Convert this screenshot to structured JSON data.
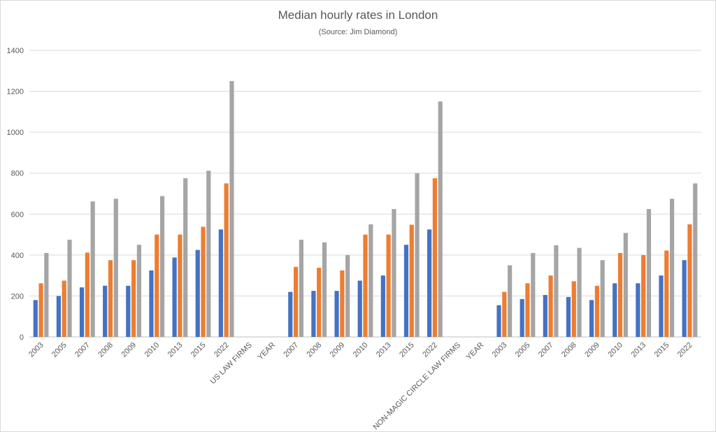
{
  "chart_data": {
    "type": "bar",
    "title": "Median hourly rates in London",
    "subtitle": "(Source: Jim Diamond)",
    "xlabel": "",
    "ylabel": "",
    "ylim": [
      0,
      1400
    ],
    "yticks": [
      0,
      200,
      400,
      600,
      800,
      1000,
      1200,
      1400
    ],
    "grid": true,
    "categories": [
      "2003",
      "2005",
      "2007",
      "2008",
      "2009",
      "2010",
      "2013",
      "2015",
      "2022",
      "US LAW FIRMS",
      "YEAR",
      "2007",
      "2008",
      "2009",
      "2010",
      "2013",
      "2015",
      "2022",
      "NON-MAGIC CIRCLE LAW FIRMS",
      "YEAR",
      "2003",
      "2005",
      "2007",
      "2008",
      "2009",
      "2010",
      "2013",
      "2015",
      "2022"
    ],
    "series": [
      {
        "color": "#4472c4",
        "values": [
          180,
          200,
          242,
          250,
          250,
          325,
          388,
          425,
          525,
          null,
          null,
          220,
          225,
          225,
          275,
          300,
          450,
          525,
          null,
          null,
          155,
          185,
          205,
          195,
          180,
          262,
          262,
          300,
          375
        ]
      },
      {
        "color": "#ed7d31",
        "values": [
          262,
          275,
          412,
          375,
          375,
          500,
          500,
          538,
          750,
          null,
          null,
          342,
          338,
          325,
          500,
          500,
          548,
          775,
          null,
          null,
          220,
          262,
          300,
          272,
          250,
          410,
          400,
          422,
          550
        ]
      },
      {
        "color": "#a5a5a5",
        "values": [
          410,
          475,
          662,
          675,
          450,
          688,
          775,
          812,
          1250,
          null,
          null,
          475,
          462,
          400,
          550,
          625,
          800,
          1150,
          null,
          null,
          350,
          410,
          448,
          435,
          375,
          508,
          625,
          675,
          750
        ]
      }
    ]
  }
}
